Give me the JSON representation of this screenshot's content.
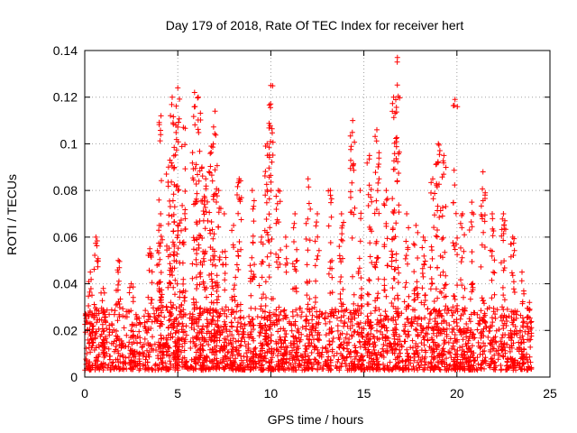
{
  "chart_data": {
    "type": "scatter",
    "title": "Day 179 of 2018, Rate Of TEC Index for receiver hert",
    "xlabel": "GPS time / hours",
    "ylabel": "ROTI / TECUs",
    "xlim": [
      0,
      25
    ],
    "ylim": [
      0,
      0.14
    ],
    "xticks": [
      0,
      5,
      10,
      15,
      20,
      25
    ],
    "yticks": [
      0,
      0.02,
      0.04,
      0.06,
      0.08,
      0.1,
      0.12,
      0.14
    ],
    "xtick_labels": [
      "0",
      "5",
      "10",
      "15",
      "20",
      "25"
    ],
    "ytick_labels": [
      "0",
      "0.02",
      "0.04",
      "0.06",
      "0.08",
      "0.1",
      "0.12",
      "0.14"
    ],
    "grid": true,
    "marker": "+",
    "series": [
      {
        "name": "ROTI",
        "color": "#ff0000",
        "x_range": [
          0,
          24
        ],
        "baseline_band": [
          0.003,
          0.03
        ],
        "peaks": [
          {
            "x": 0.3,
            "y": 0.045
          },
          {
            "x": 0.6,
            "y": 0.06
          },
          {
            "x": 1.0,
            "y": 0.038
          },
          {
            "x": 1.8,
            "y": 0.05
          },
          {
            "x": 2.5,
            "y": 0.04
          },
          {
            "x": 3.5,
            "y": 0.055
          },
          {
            "x": 4.0,
            "y": 0.065
          },
          {
            "x": 4.1,
            "y": 0.112
          },
          {
            "x": 4.5,
            "y": 0.09
          },
          {
            "x": 4.7,
            "y": 0.12
          },
          {
            "x": 4.9,
            "y": 0.108
          },
          {
            "x": 5.0,
            "y": 0.124
          },
          {
            "x": 5.3,
            "y": 0.107
          },
          {
            "x": 5.9,
            "y": 0.122
          },
          {
            "x": 6.1,
            "y": 0.12
          },
          {
            "x": 6.3,
            "y": 0.09
          },
          {
            "x": 6.5,
            "y": 0.085
          },
          {
            "x": 6.8,
            "y": 0.099
          },
          {
            "x": 7.0,
            "y": 0.114
          },
          {
            "x": 7.2,
            "y": 0.08
          },
          {
            "x": 7.5,
            "y": 0.07
          },
          {
            "x": 8.0,
            "y": 0.065
          },
          {
            "x": 8.3,
            "y": 0.085
          },
          {
            "x": 9.0,
            "y": 0.08
          },
          {
            "x": 9.5,
            "y": 0.06
          },
          {
            "x": 9.8,
            "y": 0.1
          },
          {
            "x": 10.0,
            "y": 0.125
          },
          {
            "x": 10.4,
            "y": 0.08
          },
          {
            "x": 10.8,
            "y": 0.06
          },
          {
            "x": 11.3,
            "y": 0.07
          },
          {
            "x": 12.0,
            "y": 0.085
          },
          {
            "x": 12.5,
            "y": 0.07
          },
          {
            "x": 13.2,
            "y": 0.08
          },
          {
            "x": 13.8,
            "y": 0.07
          },
          {
            "x": 14.4,
            "y": 0.11
          },
          {
            "x": 14.8,
            "y": 0.08
          },
          {
            "x": 15.3,
            "y": 0.095
          },
          {
            "x": 15.7,
            "y": 0.106
          },
          {
            "x": 16.2,
            "y": 0.08
          },
          {
            "x": 16.6,
            "y": 0.12
          },
          {
            "x": 16.8,
            "y": 0.137
          },
          {
            "x": 17.3,
            "y": 0.07
          },
          {
            "x": 17.8,
            "y": 0.065
          },
          {
            "x": 18.2,
            "y": 0.06
          },
          {
            "x": 18.7,
            "y": 0.085
          },
          {
            "x": 19.0,
            "y": 0.1
          },
          {
            "x": 19.3,
            "y": 0.095
          },
          {
            "x": 19.9,
            "y": 0.119
          },
          {
            "x": 20.3,
            "y": 0.07
          },
          {
            "x": 20.8,
            "y": 0.075
          },
          {
            "x": 21.4,
            "y": 0.088
          },
          {
            "x": 21.9,
            "y": 0.07
          },
          {
            "x": 22.5,
            "y": 0.07
          },
          {
            "x": 23.0,
            "y": 0.06
          },
          {
            "x": 23.5,
            "y": 0.045
          },
          {
            "x": 23.9,
            "y": 0.032
          }
        ]
      }
    ]
  }
}
